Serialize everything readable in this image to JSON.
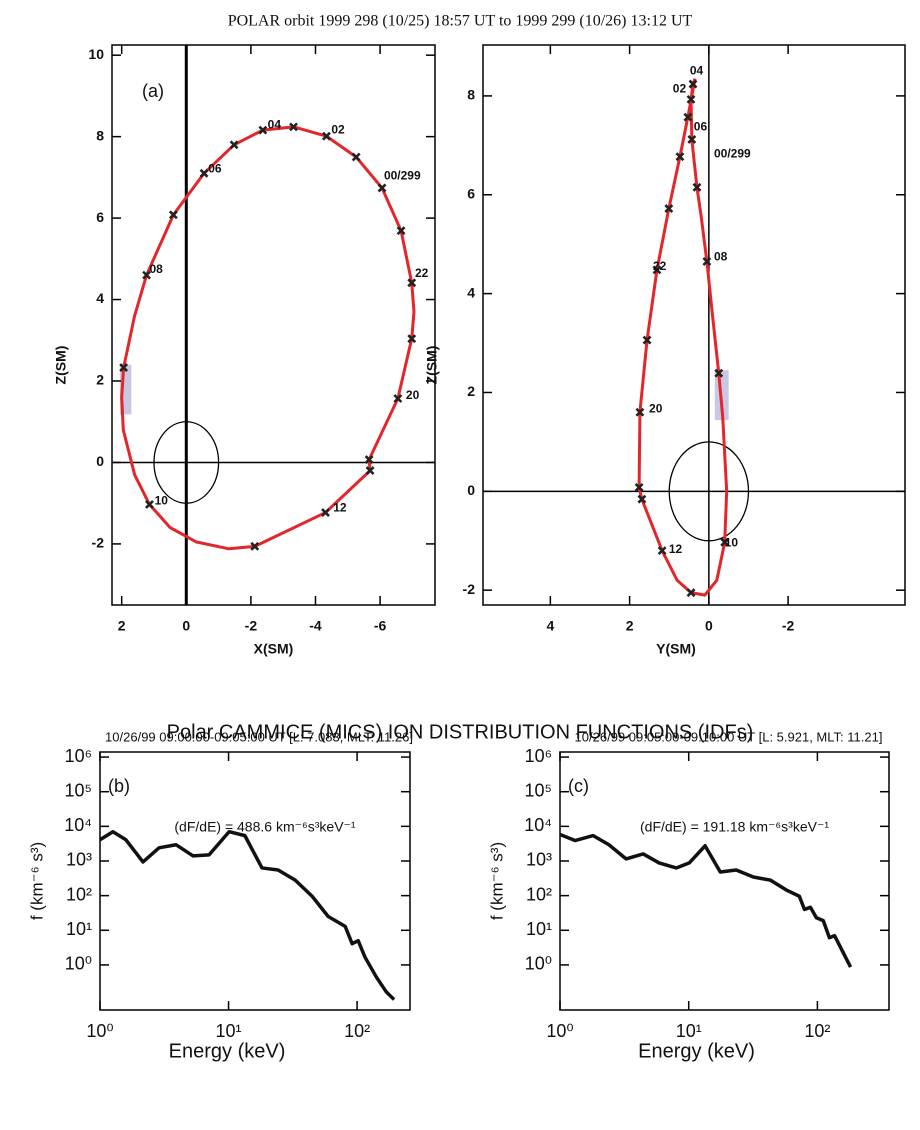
{
  "title": "POLAR orbit 1999 298 (10/25) 18:57 UT to 1999 299 (10/26) 13:12 UT",
  "subtitle": "Polar CAMMICE (MICS) ION DISTRIBUTION FUNCTIONS (IDFs)",
  "chart_data": [
    {
      "type": "orbit",
      "panel_label": "(a)",
      "xlabel": "X(SM)",
      "ylabel": "Z(SM)",
      "xlim": [
        2.3,
        -7.7
      ],
      "ylim": [
        -3.5,
        10.25
      ],
      "xticks": [
        2,
        0,
        -2,
        -4,
        -6
      ],
      "yticks": [
        -2,
        0,
        2,
        4,
        6,
        8,
        10
      ],
      "x": [
        1.23,
        0.4,
        -0.55,
        -1.48,
        -2.37,
        -3.32,
        -4.34,
        -5.26,
        -6.06,
        -6.65,
        -6.98,
        -7.05,
        -6.98,
        -6.55,
        -5.66,
        -5.69,
        -4.31,
        -2.12,
        -1.32,
        -0.3,
        0.5,
        1.14,
        1.6,
        1.95,
        2.0,
        1.94,
        1.6,
        1.23
      ],
      "series": [
        {
          "color": "#e3262b",
          "values": [
            4.6,
            6.08,
            7.1,
            7.8,
            8.16,
            8.24,
            8.01,
            7.5,
            6.74,
            5.69,
            4.41,
            3.7,
            3.04,
            1.57,
            0.07,
            -0.2,
            -1.23,
            -2.06,
            -2.12,
            -1.95,
            -1.6,
            -1.03,
            -0.3,
            0.8,
            1.6,
            2.33,
            3.6,
            4.6
          ]
        }
      ],
      "markers": {
        "x": [
          1.23,
          0.4,
          -0.55,
          -1.48,
          -2.37,
          -3.32,
          -4.34,
          -5.26,
          -6.06,
          -6.65,
          -6.98,
          -6.98,
          -6.55,
          -5.66,
          -5.69,
          -4.31,
          -2.12,
          1.14,
          1.94
        ],
        "y": [
          4.6,
          6.08,
          7.1,
          7.8,
          8.16,
          8.24,
          8.01,
          7.5,
          6.74,
          5.69,
          4.41,
          3.04,
          1.57,
          0.07,
          -0.2,
          -1.23,
          -2.06,
          -1.03,
          2.33
        ]
      },
      "annotations": [
        {
          "text": "04",
          "x": -2.52,
          "y": 8.28
        },
        {
          "text": "02",
          "x": -4.49,
          "y": 8.16
        },
        {
          "text": "00/299",
          "x": -6.12,
          "y": 7.03
        },
        {
          "text": "22",
          "x": -7.08,
          "y": 4.63
        },
        {
          "text": "20",
          "x": -6.8,
          "y": 1.64
        },
        {
          "text": "12",
          "x": -4.55,
          "y": -1.13
        },
        {
          "text": "10",
          "x": 0.98,
          "y": -0.96
        },
        {
          "text": "08",
          "x": 1.14,
          "y": 4.73
        },
        {
          "text": "06",
          "x": -0.68,
          "y": 7.2
        }
      ],
      "highlight": {
        "x": [
          2.05,
          1.7
        ],
        "y": [
          1.18,
          2.4
        ],
        "color": "#c8c8e4"
      },
      "circle": {
        "x": 0,
        "y": 0,
        "r": 1
      },
      "zero_lines": true,
      "zero_width": 3
    },
    {
      "type": "orbit",
      "xlabel": "Y(SM)",
      "ylabel": "Z(SM)",
      "xlim": [
        5.7,
        -4.95
      ],
      "ylim": [
        -2.3,
        9.03
      ],
      "xticks": [
        4,
        2,
        0,
        -2
      ],
      "yticks": [
        -2,
        0,
        2,
        4,
        6,
        8
      ],
      "x": [
        0.35,
        0.53,
        0.73,
        1.01,
        1.31,
        1.56,
        1.74,
        1.76,
        1.69,
        1.18,
        0.8,
        0.45,
        0.1,
        -0.2,
        -0.4,
        -0.45,
        -0.35,
        -0.25,
        -0.1,
        0.05,
        0.2,
        0.3,
        0.43,
        0.45,
        0.4,
        0.35
      ],
      "series": [
        {
          "color": "#e3262b",
          "values": [
            8.35,
            7.57,
            6.77,
            5.72,
            4.48,
            3.06,
            1.6,
            0.08,
            -0.16,
            -1.2,
            -1.8,
            -2.05,
            -2.1,
            -1.8,
            -1.03,
            0,
            1.5,
            2.39,
            3.5,
            4.65,
            5.6,
            6.15,
            7.12,
            7.93,
            8.24,
            8.35
          ]
        }
      ],
      "markers": {
        "x": [
          0.4,
          0.45,
          0.53,
          0.43,
          0.73,
          0.3,
          1.01,
          0.05,
          1.31,
          1.56,
          1.74,
          -0.25,
          1.76,
          1.69,
          1.18,
          -0.4,
          0.45
        ],
        "y": [
          8.24,
          7.93,
          7.57,
          7.12,
          6.77,
          6.15,
          5.72,
          4.65,
          4.48,
          3.06,
          1.6,
          2.39,
          0.08,
          -0.16,
          -1.2,
          -1.03,
          -2.05
        ]
      },
      "annotations": [
        {
          "text": "04",
          "x": 0.48,
          "y": 8.5
        },
        {
          "text": "02",
          "x": 0.91,
          "y": 8.13
        },
        {
          "text": "06",
          "x": 0.38,
          "y": 7.36
        },
        {
          "text": "00/299",
          "x": -0.13,
          "y": 6.82
        },
        {
          "text": "08",
          "x": -0.13,
          "y": 4.73
        },
        {
          "text": "22",
          "x": 1.41,
          "y": 4.54
        },
        {
          "text": "20",
          "x": 1.51,
          "y": 1.66
        },
        {
          "text": "12",
          "x": 1.01,
          "y": -1.18
        },
        {
          "text": "10",
          "x": -0.4,
          "y": -1.05
        }
      ],
      "highlight": {
        "x": [
          -0.15,
          -0.5
        ],
        "y": [
          1.44,
          2.45
        ],
        "color": "#c8c8e4"
      },
      "circle": {
        "x": 0,
        "y": 0,
        "r": 1
      },
      "zero_lines": true,
      "zero_width": 1.5
    },
    {
      "type": "line",
      "title": "10/26/99 09:00:00-09:05:00 UT [L: 7.083, MLT: 11.26]",
      "panel_label": "(b)",
      "annotation": "(dF/dE) = 488.6 km⁻⁶s³keV⁻¹",
      "xlabel": "Energy (keV)",
      "ylabel": "f (km⁻⁶ s³)",
      "xlog": true,
      "ylog": true,
      "xlim": [
        1,
        258
      ],
      "ylim": [
        0.05,
        1400000
      ],
      "xticks": [
        {
          "value": 1,
          "label": "10⁰"
        },
        {
          "value": 10,
          "label": "10¹"
        },
        {
          "value": 100,
          "label": "10²"
        }
      ],
      "yticks": [
        {
          "value": 1,
          "label": "10⁰"
        },
        {
          "value": 10,
          "label": "10¹"
        },
        {
          "value": 100,
          "label": "10²"
        },
        {
          "value": 1000,
          "label": "10³"
        },
        {
          "value": 10000,
          "label": "10⁴"
        },
        {
          "value": 100000,
          "label": "10⁵"
        },
        {
          "value": 1000000,
          "label": "10⁶"
        }
      ],
      "x": [
        1.0,
        1.26,
        1.59,
        2.16,
        2.88,
        3.9,
        5.3,
        7.05,
        10.1,
        13.4,
        18.2,
        24.3,
        33.0,
        44.7,
        59.6,
        80.8,
        91.5,
        102,
        115,
        141,
        168,
        194
      ],
      "series": [
        {
          "color": "#111111",
          "values": [
            4100,
            7000,
            4100,
            940,
            2400,
            2950,
            1400,
            1500,
            7000,
            5400,
            630,
            550,
            280,
            96,
            25,
            13,
            4.1,
            5.0,
            1.7,
            0.45,
            0.17,
            0.1
          ]
        }
      ]
    },
    {
      "type": "line",
      "title": "10/26/99 09:05:00-09:10:00 UT [L: 5.921, MLT: 11.21]",
      "panel_label": "(c)",
      "annotation": "(dF/dE) = 191.18 km⁻⁶s³keV⁻¹",
      "xlabel": "Energy (keV)",
      "ylabel": "f (km⁻⁶ s³)",
      "xlog": true,
      "ylog": true,
      "xlim": [
        1,
        360
      ],
      "ylim": [
        0.05,
        1400000
      ],
      "xticks": [
        {
          "value": 1,
          "label": "10⁰"
        },
        {
          "value": 10,
          "label": "10¹"
        },
        {
          "value": 100,
          "label": "10²"
        }
      ],
      "yticks": [
        {
          "value": 1,
          "label": "10⁰"
        },
        {
          "value": 10,
          "label": "10¹"
        },
        {
          "value": 100,
          "label": "10²"
        },
        {
          "value": 1000,
          "label": "10³"
        },
        {
          "value": 10000,
          "label": "10⁴"
        },
        {
          "value": 100000,
          "label": "10⁵"
        },
        {
          "value": 1000000,
          "label": "10⁶"
        }
      ],
      "x": [
        1.0,
        1.31,
        1.81,
        2.4,
        3.26,
        4.43,
        5.89,
        8.0,
        10.1,
        13.4,
        17.6,
        23.4,
        31.8,
        43.1,
        57.4,
        72.4,
        79.3,
        88.3,
        98.2,
        111,
        124,
        136,
        181
      ],
      "series": [
        {
          "color": "#111111",
          "values": [
            5800,
            3900,
            5400,
            2950,
            1150,
            1600,
            880,
            630,
            880,
            2750,
            480,
            550,
            345,
            280,
            145,
            96,
            40,
            46,
            23,
            19,
            6.1,
            7.0,
            0.87
          ]
        }
      ]
    }
  ]
}
